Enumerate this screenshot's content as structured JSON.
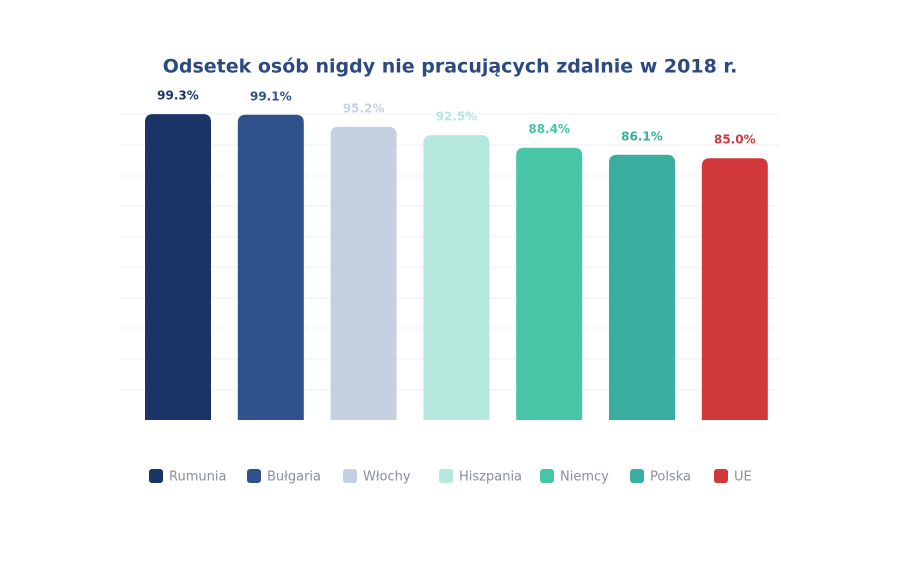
{
  "chart_data": {
    "type": "bar",
    "title": "Odsetek osób nigdy nie pracujących zdalnie w 2018 r.",
    "categories": [
      "Rumunia",
      "Bułgaria",
      "Włochy",
      "Hiszpania",
      "Niemcy",
      "Polska",
      "UE"
    ],
    "values": [
      99.3,
      99.1,
      95.2,
      92.5,
      88.4,
      86.1,
      85.0
    ],
    "value_labels": [
      "99.3%",
      "99.1%",
      "95.2%",
      "92.5%",
      "88.4%",
      "86.1%",
      "85.0%"
    ],
    "colors": [
      "#1b3468",
      "#30528c",
      "#c5d0e0",
      "#b5e8dc",
      "#48c5a7",
      "#3aaf9f",
      "#d0383a"
    ],
    "ylim": [
      0,
      100
    ],
    "legend": "bottom"
  }
}
